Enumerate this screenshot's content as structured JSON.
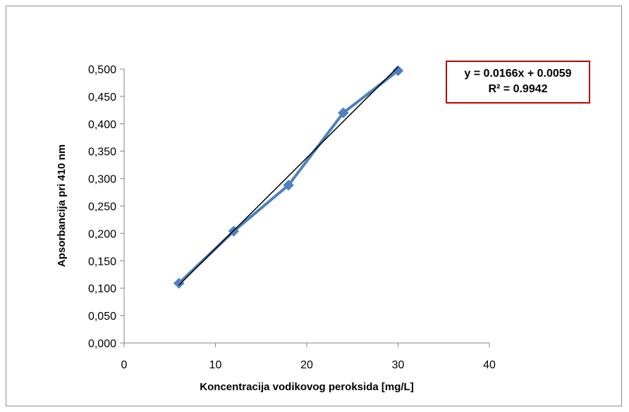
{
  "chart_data": {
    "type": "scatter",
    "xlabel": "Koncentracija vodikovog peroksida [mg/L]",
    "ylabel": "Apsorbancija pri 410 nm",
    "xlim": [
      0,
      40
    ],
    "ylim": [
      0,
      0.5
    ],
    "x_ticks": [
      "0",
      "10",
      "20",
      "30",
      "40"
    ],
    "y_ticks": [
      "0,000",
      "0,050",
      "0,100",
      "0,150",
      "0,200",
      "0,250",
      "0,300",
      "0,350",
      "0,400",
      "0,450",
      "0,500"
    ],
    "series": [
      {
        "x": [
          6,
          12,
          18,
          24,
          30
        ],
        "y": [
          0.109,
          0.204,
          0.288,
          0.42,
          0.497
        ],
        "color": "#4f81bd",
        "marker": "diamond",
        "line": true
      }
    ],
    "trendline": {
      "slope": 0.0166,
      "intercept": 0.0059,
      "x_range": [
        6,
        30
      ],
      "color": "#000000"
    },
    "equation": "y = 0.0166x + 0.0059",
    "r_squared": "R² = 0.9942",
    "grid": false,
    "legend": "none"
  }
}
